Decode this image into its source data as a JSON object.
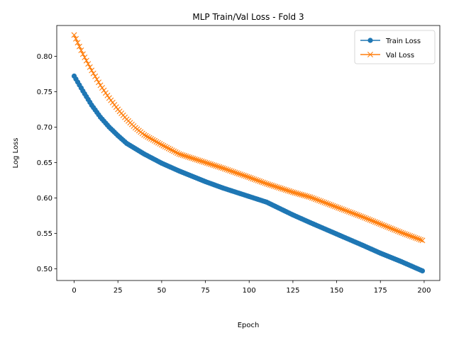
{
  "chart_data": {
    "type": "line",
    "title": "MLP Train/Val Loss - Fold 3",
    "xlabel": "Epoch",
    "ylabel": "Log Loss",
    "xlim": [
      -9.95,
      208.95
    ],
    "ylim": [
      0.4834,
      0.8434
    ],
    "xticks": [
      0,
      25,
      50,
      75,
      100,
      125,
      150,
      175,
      200
    ],
    "yticks": [
      0.5,
      0.55,
      0.6,
      0.65,
      0.7,
      0.75,
      0.8
    ],
    "xtick_labels": [
      "0",
      "25",
      "50",
      "75",
      "100",
      "125",
      "150",
      "175",
      "200"
    ],
    "ytick_labels": [
      "0.50",
      "0.55",
      "0.60",
      "0.65",
      "0.70",
      "0.75",
      "0.80"
    ],
    "grid": false,
    "legend_position": "top-right",
    "epochs": 200,
    "series": [
      {
        "name": "Train Loss",
        "color": "#1f77b4",
        "marker": "circle",
        "keypoints": [
          [
            0,
            0.772
          ],
          [
            5,
            0.751
          ],
          [
            10,
            0.731
          ],
          [
            15,
            0.714
          ],
          [
            20,
            0.7
          ],
          [
            25,
            0.688
          ],
          [
            30,
            0.677
          ],
          [
            40,
            0.662
          ],
          [
            50,
            0.649
          ],
          [
            60,
            0.638
          ],
          [
            75,
            0.623
          ],
          [
            85,
            0.614
          ],
          [
            100,
            0.602
          ],
          [
            110,
            0.594
          ],
          [
            125,
            0.576
          ],
          [
            135,
            0.565
          ],
          [
            150,
            0.549
          ],
          [
            165,
            0.533
          ],
          [
            175,
            0.522
          ],
          [
            187,
            0.51
          ],
          [
            199,
            0.497
          ]
        ]
      },
      {
        "name": "Val Loss",
        "color": "#ff7f0e",
        "marker": "x",
        "keypoints": [
          [
            0,
            0.83
          ],
          [
            5,
            0.803
          ],
          [
            10,
            0.78
          ],
          [
            15,
            0.759
          ],
          [
            20,
            0.741
          ],
          [
            25,
            0.725
          ],
          [
            30,
            0.711
          ],
          [
            35,
            0.699
          ],
          [
            40,
            0.689
          ],
          [
            50,
            0.675
          ],
          [
            60,
            0.662
          ],
          [
            75,
            0.65
          ],
          [
            85,
            0.642
          ],
          [
            100,
            0.629
          ],
          [
            110,
            0.62
          ],
          [
            125,
            0.608
          ],
          [
            135,
            0.601
          ],
          [
            150,
            0.587
          ],
          [
            165,
            0.573
          ],
          [
            175,
            0.563
          ],
          [
            187,
            0.551
          ],
          [
            199,
            0.54
          ]
        ]
      }
    ]
  }
}
